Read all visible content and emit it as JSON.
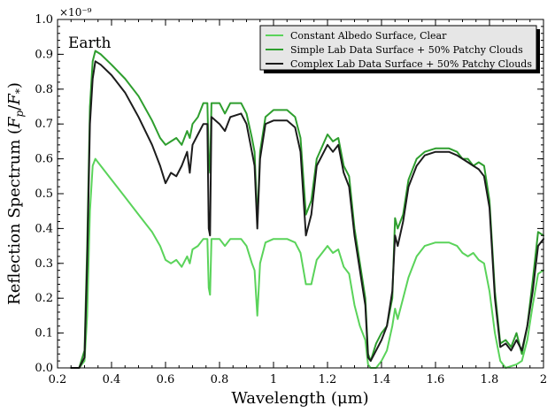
{
  "chart_data": {
    "type": "line",
    "title": "",
    "panel_label": "Earth",
    "xlabel": "Wavelength (μm)",
    "ylabel": "Reflection Spectrum (F_p/F_*)",
    "ylabel_text": "Reflection Spectrum (",
    "ylabel_math": "F",
    "y_offset_text": "×10⁻⁹",
    "xlim": [
      0.2,
      2.0
    ],
    "ylim": [
      0.0,
      1.0
    ],
    "y_scale": 1e-09,
    "x_ticks": [
      0.2,
      0.4,
      0.6,
      0.8,
      1.0,
      1.2,
      1.4,
      1.6,
      1.8,
      2.0
    ],
    "x_tick_labels": [
      "0.2",
      "0.4",
      "0.6",
      "0.8",
      "1",
      "1.2",
      "1.4",
      "1.6",
      "1.8",
      "2"
    ],
    "y_ticks": [
      0.0,
      0.1,
      0.2,
      0.3,
      0.4,
      0.5,
      0.6,
      0.7,
      0.8,
      0.9,
      1.0
    ],
    "y_tick_labels": [
      "0.0",
      "0.1",
      "0.2",
      "0.3",
      "0.4",
      "0.5",
      "0.6",
      "0.7",
      "0.8",
      "0.9",
      "1.0"
    ],
    "grid": false,
    "legend": "top-right",
    "series": [
      {
        "name": "Constant Albedo Surface, Clear",
        "color": "#5ad35a",
        "points": [
          [
            0.25,
            0.0
          ],
          [
            0.28,
            0.0
          ],
          [
            0.3,
            0.02
          ],
          [
            0.31,
            0.15
          ],
          [
            0.32,
            0.45
          ],
          [
            0.33,
            0.58
          ],
          [
            0.34,
            0.6
          ],
          [
            0.36,
            0.58
          ],
          [
            0.4,
            0.54
          ],
          [
            0.45,
            0.49
          ],
          [
            0.5,
            0.44
          ],
          [
            0.55,
            0.39
          ],
          [
            0.58,
            0.35
          ],
          [
            0.6,
            0.31
          ],
          [
            0.62,
            0.3
          ],
          [
            0.64,
            0.31
          ],
          [
            0.66,
            0.29
          ],
          [
            0.68,
            0.32
          ],
          [
            0.69,
            0.3
          ],
          [
            0.7,
            0.34
          ],
          [
            0.72,
            0.35
          ],
          [
            0.74,
            0.37
          ],
          [
            0.755,
            0.37
          ],
          [
            0.76,
            0.23
          ],
          [
            0.765,
            0.21
          ],
          [
            0.77,
            0.37
          ],
          [
            0.8,
            0.37
          ],
          [
            0.82,
            0.35
          ],
          [
            0.84,
            0.37
          ],
          [
            0.88,
            0.37
          ],
          [
            0.9,
            0.35
          ],
          [
            0.92,
            0.3
          ],
          [
            0.93,
            0.28
          ],
          [
            0.94,
            0.15
          ],
          [
            0.95,
            0.3
          ],
          [
            0.97,
            0.36
          ],
          [
            1.0,
            0.37
          ],
          [
            1.05,
            0.37
          ],
          [
            1.08,
            0.36
          ],
          [
            1.1,
            0.33
          ],
          [
            1.12,
            0.24
          ],
          [
            1.14,
            0.24
          ],
          [
            1.16,
            0.31
          ],
          [
            1.2,
            0.35
          ],
          [
            1.22,
            0.33
          ],
          [
            1.24,
            0.34
          ],
          [
            1.26,
            0.29
          ],
          [
            1.28,
            0.27
          ],
          [
            1.3,
            0.18
          ],
          [
            1.32,
            0.12
          ],
          [
            1.34,
            0.08
          ],
          [
            1.35,
            0.01
          ],
          [
            1.36,
            0.0
          ],
          [
            1.38,
            0.0
          ],
          [
            1.4,
            0.02
          ],
          [
            1.42,
            0.05
          ],
          [
            1.44,
            0.12
          ],
          [
            1.45,
            0.17
          ],
          [
            1.46,
            0.14
          ],
          [
            1.48,
            0.2
          ],
          [
            1.5,
            0.26
          ],
          [
            1.53,
            0.32
          ],
          [
            1.56,
            0.35
          ],
          [
            1.6,
            0.36
          ],
          [
            1.65,
            0.36
          ],
          [
            1.68,
            0.35
          ],
          [
            1.7,
            0.33
          ],
          [
            1.72,
            0.32
          ],
          [
            1.74,
            0.33
          ],
          [
            1.76,
            0.31
          ],
          [
            1.78,
            0.3
          ],
          [
            1.8,
            0.22
          ],
          [
            1.82,
            0.1
          ],
          [
            1.84,
            0.02
          ],
          [
            1.86,
            0.0
          ],
          [
            1.9,
            0.01
          ],
          [
            1.92,
            0.02
          ],
          [
            1.94,
            0.08
          ],
          [
            1.96,
            0.18
          ],
          [
            1.98,
            0.27
          ],
          [
            2.0,
            0.28
          ]
        ]
      },
      {
        "name": "Simple Lab Data Surface + 50% Patchy Clouds",
        "color": "#2e9e2e",
        "points": [
          [
            0.25,
            0.0
          ],
          [
            0.28,
            0.0
          ],
          [
            0.3,
            0.05
          ],
          [
            0.31,
            0.35
          ],
          [
            0.32,
            0.75
          ],
          [
            0.33,
            0.88
          ],
          [
            0.34,
            0.91
          ],
          [
            0.36,
            0.9
          ],
          [
            0.4,
            0.87
          ],
          [
            0.45,
            0.83
          ],
          [
            0.5,
            0.78
          ],
          [
            0.55,
            0.71
          ],
          [
            0.58,
            0.66
          ],
          [
            0.6,
            0.64
          ],
          [
            0.62,
            0.65
          ],
          [
            0.64,
            0.66
          ],
          [
            0.66,
            0.64
          ],
          [
            0.68,
            0.68
          ],
          [
            0.69,
            0.66
          ],
          [
            0.7,
            0.7
          ],
          [
            0.72,
            0.72
          ],
          [
            0.74,
            0.76
          ],
          [
            0.755,
            0.76
          ],
          [
            0.76,
            0.6
          ],
          [
            0.765,
            0.56
          ],
          [
            0.77,
            0.76
          ],
          [
            0.8,
            0.76
          ],
          [
            0.82,
            0.73
          ],
          [
            0.84,
            0.76
          ],
          [
            0.88,
            0.76
          ],
          [
            0.9,
            0.73
          ],
          [
            0.92,
            0.66
          ],
          [
            0.93,
            0.62
          ],
          [
            0.94,
            0.42
          ],
          [
            0.95,
            0.62
          ],
          [
            0.97,
            0.72
          ],
          [
            1.0,
            0.74
          ],
          [
            1.05,
            0.74
          ],
          [
            1.08,
            0.72
          ],
          [
            1.1,
            0.66
          ],
          [
            1.12,
            0.44
          ],
          [
            1.14,
            0.48
          ],
          [
            1.16,
            0.6
          ],
          [
            1.2,
            0.67
          ],
          [
            1.22,
            0.65
          ],
          [
            1.24,
            0.66
          ],
          [
            1.26,
            0.58
          ],
          [
            1.28,
            0.55
          ],
          [
            1.3,
            0.4
          ],
          [
            1.32,
            0.3
          ],
          [
            1.34,
            0.2
          ],
          [
            1.35,
            0.04
          ],
          [
            1.36,
            0.02
          ],
          [
            1.38,
            0.07
          ],
          [
            1.4,
            0.1
          ],
          [
            1.42,
            0.12
          ],
          [
            1.44,
            0.2
          ],
          [
            1.45,
            0.43
          ],
          [
            1.46,
            0.4
          ],
          [
            1.48,
            0.44
          ],
          [
            1.5,
            0.54
          ],
          [
            1.53,
            0.6
          ],
          [
            1.56,
            0.62
          ],
          [
            1.6,
            0.63
          ],
          [
            1.65,
            0.63
          ],
          [
            1.68,
            0.62
          ],
          [
            1.7,
            0.6
          ],
          [
            1.72,
            0.6
          ],
          [
            1.74,
            0.58
          ],
          [
            1.76,
            0.59
          ],
          [
            1.78,
            0.58
          ],
          [
            1.8,
            0.48
          ],
          [
            1.82,
            0.22
          ],
          [
            1.84,
            0.07
          ],
          [
            1.86,
            0.08
          ],
          [
            1.88,
            0.06
          ],
          [
            1.9,
            0.1
          ],
          [
            1.92,
            0.04
          ],
          [
            1.94,
            0.12
          ],
          [
            1.96,
            0.25
          ],
          [
            1.98,
            0.39
          ],
          [
            2.0,
            0.38
          ]
        ]
      },
      {
        "name": "Complex Lab Data Surface + 50% Patchy Clouds",
        "color": "#1c1c1c",
        "points": [
          [
            0.25,
            0.0
          ],
          [
            0.28,
            0.0
          ],
          [
            0.3,
            0.03
          ],
          [
            0.31,
            0.3
          ],
          [
            0.32,
            0.7
          ],
          [
            0.33,
            0.83
          ],
          [
            0.34,
            0.88
          ],
          [
            0.36,
            0.87
          ],
          [
            0.4,
            0.84
          ],
          [
            0.45,
            0.79
          ],
          [
            0.5,
            0.72
          ],
          [
            0.55,
            0.64
          ],
          [
            0.58,
            0.58
          ],
          [
            0.6,
            0.53
          ],
          [
            0.62,
            0.56
          ],
          [
            0.64,
            0.55
          ],
          [
            0.66,
            0.58
          ],
          [
            0.68,
            0.62
          ],
          [
            0.69,
            0.56
          ],
          [
            0.7,
            0.64
          ],
          [
            0.72,
            0.67
          ],
          [
            0.74,
            0.7
          ],
          [
            0.755,
            0.7
          ],
          [
            0.76,
            0.4
          ],
          [
            0.765,
            0.38
          ],
          [
            0.77,
            0.72
          ],
          [
            0.8,
            0.7
          ],
          [
            0.82,
            0.68
          ],
          [
            0.84,
            0.72
          ],
          [
            0.88,
            0.73
          ],
          [
            0.9,
            0.7
          ],
          [
            0.92,
            0.62
          ],
          [
            0.93,
            0.58
          ],
          [
            0.94,
            0.4
          ],
          [
            0.95,
            0.6
          ],
          [
            0.97,
            0.7
          ],
          [
            1.0,
            0.71
          ],
          [
            1.05,
            0.71
          ],
          [
            1.08,
            0.69
          ],
          [
            1.1,
            0.62
          ],
          [
            1.12,
            0.38
          ],
          [
            1.14,
            0.44
          ],
          [
            1.16,
            0.58
          ],
          [
            1.2,
            0.64
          ],
          [
            1.22,
            0.62
          ],
          [
            1.24,
            0.64
          ],
          [
            1.26,
            0.56
          ],
          [
            1.28,
            0.52
          ],
          [
            1.3,
            0.38
          ],
          [
            1.32,
            0.28
          ],
          [
            1.34,
            0.18
          ],
          [
            1.35,
            0.03
          ],
          [
            1.36,
            0.02
          ],
          [
            1.38,
            0.05
          ],
          [
            1.4,
            0.08
          ],
          [
            1.42,
            0.12
          ],
          [
            1.44,
            0.22
          ],
          [
            1.45,
            0.38
          ],
          [
            1.46,
            0.35
          ],
          [
            1.48,
            0.42
          ],
          [
            1.5,
            0.52
          ],
          [
            1.53,
            0.58
          ],
          [
            1.56,
            0.61
          ],
          [
            1.6,
            0.62
          ],
          [
            1.65,
            0.62
          ],
          [
            1.68,
            0.61
          ],
          [
            1.7,
            0.6
          ],
          [
            1.72,
            0.59
          ],
          [
            1.74,
            0.58
          ],
          [
            1.76,
            0.57
          ],
          [
            1.78,
            0.55
          ],
          [
            1.8,
            0.46
          ],
          [
            1.82,
            0.2
          ],
          [
            1.84,
            0.06
          ],
          [
            1.86,
            0.07
          ],
          [
            1.88,
            0.05
          ],
          [
            1.9,
            0.08
          ],
          [
            1.92,
            0.05
          ],
          [
            1.94,
            0.12
          ],
          [
            1.96,
            0.22
          ],
          [
            1.98,
            0.35
          ],
          [
            2.0,
            0.37
          ]
        ]
      }
    ]
  }
}
